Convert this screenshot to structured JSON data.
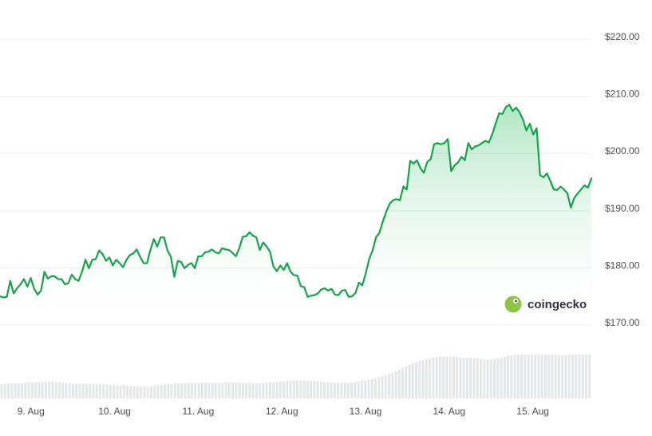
{
  "chart_data": {
    "type": "area",
    "title": "",
    "xlabel": "",
    "ylabel": "",
    "ylim": [
      168,
      223
    ],
    "grid": true,
    "y_ticks": [
      "$220.00",
      "$210.00",
      "$200.00",
      "$190.00",
      "$180.00",
      "$170.00"
    ],
    "y_tick_values": [
      220,
      210,
      200,
      190,
      180,
      170
    ],
    "x_ticks": [
      "9. Aug",
      "10. Aug",
      "11. Aug",
      "12. Aug",
      "13. Aug",
      "14. Aug",
      "15. Aug"
    ],
    "x_tick_days": [
      1,
      2,
      3,
      4,
      5,
      6,
      7
    ],
    "x_range_days": [
      0.63,
      7.7
    ],
    "series": [
      {
        "values": [
          174.6,
          174.4,
          174.5,
          177.3,
          175.1,
          176.0,
          176.7,
          177.6,
          176.3,
          177.8,
          175.9,
          174.9,
          175.6,
          178.9,
          177.7,
          178.1,
          178.1,
          177.6,
          177.6,
          176.7,
          176.9,
          178.4,
          177.6,
          177.3,
          178.9,
          181.0,
          179.5,
          181.0,
          181.1,
          182.6,
          182.0,
          180.8,
          181.4,
          180.0,
          181.0,
          180.4,
          179.7,
          181.0,
          181.8,
          182.1,
          182.8,
          181.5,
          180.4,
          180.4,
          182.7,
          184.6,
          183.3,
          184.9,
          184.9,
          182.6,
          181.5,
          178.0,
          180.8,
          180.6,
          179.5,
          180.1,
          180.4,
          179.5,
          181.6,
          181.6,
          182.3,
          182.4,
          182.8,
          182.3,
          182.1,
          183.0,
          182.8,
          182.7,
          182.2,
          181.6,
          183.0,
          185.0,
          185.1,
          185.8,
          185.2,
          184.9,
          182.7,
          184.0,
          183.3,
          182.4,
          179.8,
          179.0,
          180.0,
          179.2,
          180.4,
          178.9,
          178.3,
          178.2,
          176.4,
          176.2,
          174.5,
          174.7,
          174.8,
          175.1,
          175.8,
          176.0,
          175.6,
          175.9,
          174.9,
          174.8,
          175.6,
          175.7,
          174.5,
          174.6,
          175.2,
          177.0,
          176.5,
          178.6,
          181.1,
          182.6,
          184.9,
          185.7,
          187.7,
          189.4,
          190.8,
          191.4,
          191.6,
          191.4,
          193.8,
          193.3,
          198.3,
          197.8,
          198.4,
          197.0,
          196.2,
          198.1,
          198.6,
          201.2,
          201.4,
          201.2,
          201.4,
          202.1,
          196.5,
          197.5,
          198.0,
          199.0,
          198.4,
          201.4,
          200.3,
          200.8,
          201.0,
          201.4,
          201.8,
          201.5,
          202.9,
          204.8,
          206.6,
          206.5,
          207.7,
          208.1,
          207.0,
          207.6,
          206.8,
          205.5,
          203.6,
          204.8,
          202.9,
          204.0,
          195.8,
          195.4,
          196.1,
          194.8,
          193.3,
          193.2,
          193.8,
          193.3,
          192.6,
          190.1,
          191.8,
          192.6,
          193.3,
          194.0,
          193.6,
          195.2
        ]
      }
    ],
    "volume": {
      "values": [
        0.27,
        0.27,
        0.28,
        0.28,
        0.28,
        0.28,
        0.28,
        0.29,
        0.3,
        0.3,
        0.3,
        0.31,
        0.31,
        0.32,
        0.32,
        0.32,
        0.31,
        0.31,
        0.3,
        0.29,
        0.28,
        0.27,
        0.27,
        0.27,
        0.27,
        0.27,
        0.27,
        0.27,
        0.27,
        0.27,
        0.27,
        0.26,
        0.26,
        0.26,
        0.25,
        0.25,
        0.25,
        0.24,
        0.24,
        0.23,
        0.22,
        0.22,
        0.22,
        0.22,
        0.23,
        0.24,
        0.25,
        0.26,
        0.27,
        0.27,
        0.27,
        0.28,
        0.28,
        0.28,
        0.29,
        0.29,
        0.29,
        0.29,
        0.29,
        0.29,
        0.29,
        0.29,
        0.29,
        0.29,
        0.29,
        0.29,
        0.3,
        0.3,
        0.3,
        0.3,
        0.3,
        0.29,
        0.29,
        0.29,
        0.28,
        0.28,
        0.28,
        0.29,
        0.3,
        0.3,
        0.31,
        0.31,
        0.32,
        0.32,
        0.33,
        0.33,
        0.34,
        0.34,
        0.34,
        0.34,
        0.33,
        0.33,
        0.33,
        0.32,
        0.32,
        0.31,
        0.3,
        0.29,
        0.29,
        0.29,
        0.29,
        0.29,
        0.29,
        0.3,
        0.31,
        0.33,
        0.34,
        0.34,
        0.35,
        0.36,
        0.38,
        0.4,
        0.42,
        0.44,
        0.46,
        0.48,
        0.51,
        0.54,
        0.57,
        0.6,
        0.63,
        0.66,
        0.68,
        0.7,
        0.72,
        0.74,
        0.75,
        0.76,
        0.77,
        0.78,
        0.78,
        0.78,
        0.78,
        0.78,
        0.77,
        0.76,
        0.76,
        0.76,
        0.76,
        0.76,
        0.75,
        0.74,
        0.73,
        0.73,
        0.73,
        0.74,
        0.75,
        0.76,
        0.78,
        0.8,
        0.81,
        0.82,
        0.82,
        0.82,
        0.82,
        0.82,
        0.82,
        0.82,
        0.82,
        0.82,
        0.82,
        0.82,
        0.82,
        0.81,
        0.81,
        0.81,
        0.81,
        0.82,
        0.82,
        0.82,
        0.82,
        0.82,
        0.82,
        0.83
      ],
      "min_value": 0
    },
    "colors": {
      "line": "#16a34a",
      "area_top": "#4ec57a",
      "area_bottom": "#ffffff",
      "grid": "#eceef1",
      "volume_bar": "#e4e6ea",
      "tick_text": "#4b4f58"
    }
  },
  "watermark": {
    "text": "coingecko",
    "logo_color": "#8dc647",
    "logo_eye_color": "#ffffff"
  }
}
